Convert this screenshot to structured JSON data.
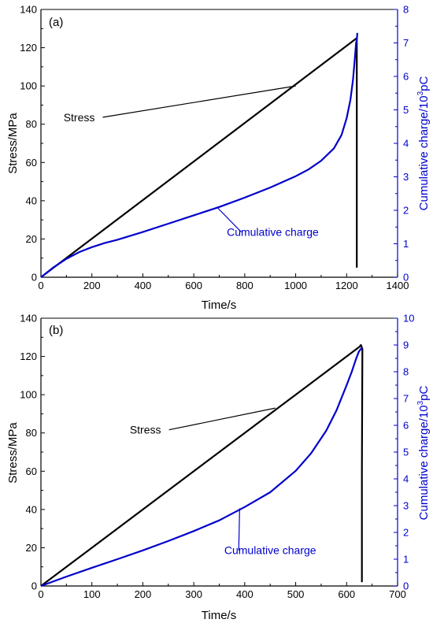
{
  "colors": {
    "stress": "#000000",
    "charge": "#0000cc",
    "axis": "#000000"
  },
  "chart_data": [
    {
      "type": "line",
      "panel_label": "(a)",
      "xlabel": "Time/s",
      "ylabel": "Stress/MPa",
      "y2label_main": "Cumulative charge/10",
      "y2label_exp": "3",
      "y2label_unit": "pC",
      "xlim": [
        0,
        1400
      ],
      "ylim": [
        0,
        140
      ],
      "y2lim": [
        0,
        8
      ],
      "xticks": [
        0,
        200,
        400,
        600,
        800,
        1000,
        1200,
        1400
      ],
      "yticks": [
        0,
        20,
        40,
        60,
        80,
        100,
        120,
        140
      ],
      "y2ticks": [
        0,
        1,
        2,
        3,
        4,
        5,
        6,
        7,
        8
      ],
      "series": [
        {
          "name": "Stress",
          "axis": "left",
          "x": [
            0,
            1240,
            1240,
            1240
          ],
          "y": [
            0,
            125,
            60,
            5
          ]
        },
        {
          "name": "Cumulative charge",
          "axis": "right",
          "x": [
            0,
            50,
            100,
            150,
            200,
            250,
            300,
            400,
            500,
            600,
            700,
            800,
            900,
            1000,
            1050,
            1100,
            1150,
            1180,
            1200,
            1215,
            1225,
            1232,
            1237,
            1240,
            1242
          ],
          "y": [
            0,
            0.3,
            0.55,
            0.75,
            0.9,
            1.02,
            1.12,
            1.35,
            1.6,
            1.85,
            2.1,
            2.38,
            2.68,
            3.02,
            3.22,
            3.48,
            3.85,
            4.25,
            4.75,
            5.3,
            5.9,
            6.5,
            7.0,
            7.1,
            7.3
          ]
        }
      ],
      "annotations": [
        {
          "text": "Stress",
          "series": "Stress",
          "label_x": 150,
          "label_y": 82,
          "point_x": 1000,
          "point_y": 100
        },
        {
          "text": "Cumulative charge",
          "series": "Cumulative charge",
          "label_x": 910,
          "label_y": 22,
          "point_x": 690,
          "point_y": 2.1
        }
      ]
    },
    {
      "type": "line",
      "panel_label": "(b)",
      "xlabel": "Time/s",
      "ylabel": "Stress/MPa",
      "y2label_main": "Cumulative charge/10",
      "y2label_exp": "3",
      "y2label_unit": "pC",
      "xlim": [
        0,
        700
      ],
      "ylim": [
        0,
        140
      ],
      "y2lim": [
        0,
        10
      ],
      "xticks": [
        0,
        100,
        200,
        300,
        400,
        500,
        600,
        700
      ],
      "yticks": [
        0,
        20,
        40,
        60,
        80,
        100,
        120,
        140
      ],
      "y2ticks": [
        0,
        1,
        2,
        3,
        4,
        5,
        6,
        7,
        8,
        9,
        10
      ],
      "series": [
        {
          "name": "Stress",
          "axis": "left",
          "x": [
            0,
            625,
            628,
            631,
            630,
            630
          ],
          "y": [
            0,
            125,
            126,
            124,
            60,
            2
          ]
        },
        {
          "name": "Cumulative charge",
          "axis": "right",
          "x": [
            0,
            50,
            100,
            150,
            200,
            250,
            300,
            350,
            400,
            450,
            500,
            530,
            560,
            580,
            600,
            610,
            618,
            624,
            628,
            631
          ],
          "y": [
            0,
            0.35,
            0.68,
            1.0,
            1.33,
            1.68,
            2.05,
            2.45,
            2.95,
            3.5,
            4.3,
            4.95,
            5.8,
            6.55,
            7.5,
            8.0,
            8.45,
            8.75,
            8.85,
            8.9
          ]
        }
      ],
      "annotations": [
        {
          "text": "Stress",
          "series": "Stress",
          "label_x": 205,
          "label_y": 80,
          "point_x": 460,
          "point_y": 93
        },
        {
          "text": "Cumulative charge",
          "series": "Cumulative charge",
          "label_x": 450,
          "label_y": 17,
          "point_x": 390,
          "point_y": 2.9
        }
      ]
    }
  ]
}
